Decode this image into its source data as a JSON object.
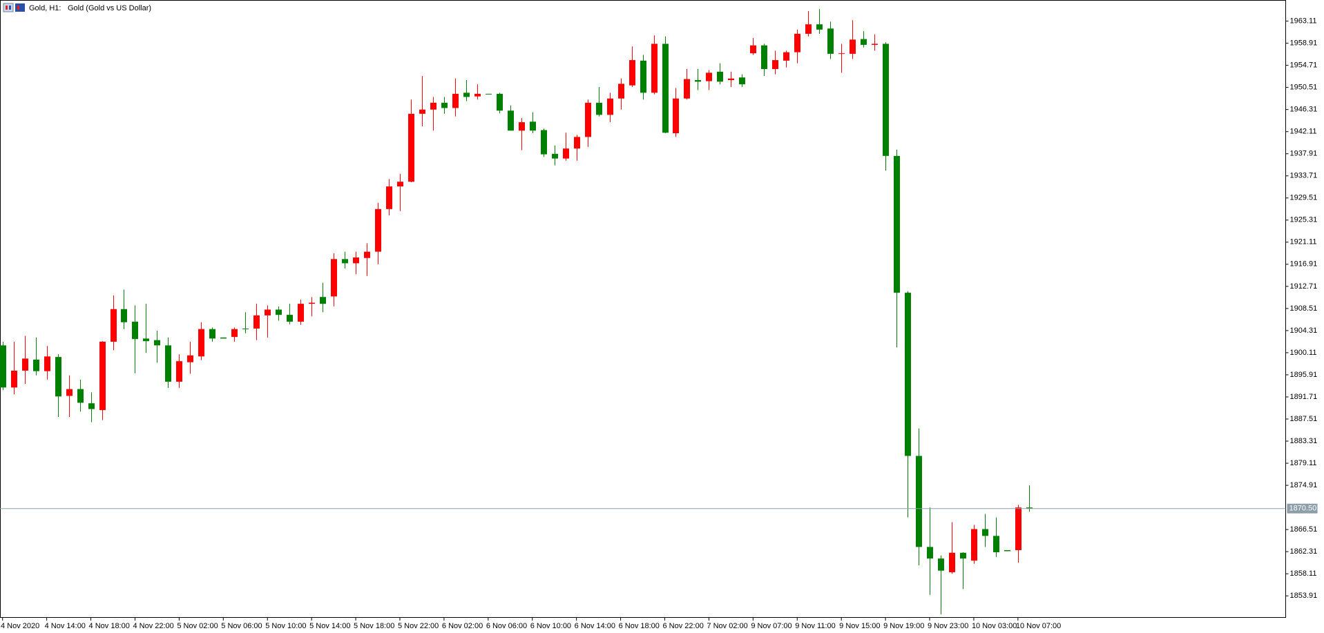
{
  "chart_data": {
    "type": "candlestick",
    "symbol": "Gold, H1:",
    "description": "Gold (Gold vs US Dollar)",
    "up_color": "#ff0000",
    "down_color": "#008000",
    "categories": [
      "4 Nov 2020",
      null,
      null,
      null,
      "4 Nov 14:00",
      null,
      null,
      null,
      "4 Nov 18:00",
      null,
      null,
      null,
      "4 Nov 22:00",
      null,
      null,
      null,
      "5 Nov 02:00",
      null,
      null,
      null,
      "5 Nov 06:00",
      null,
      null,
      null,
      "5 Nov 10:00",
      null,
      null,
      null,
      "5 Nov 14:00",
      null,
      null,
      null,
      "5 Nov 18:00",
      null,
      null,
      null,
      "5 Nov 22:00",
      null,
      null,
      null,
      "6 Nov 02:00",
      null,
      null,
      null,
      "6 Nov 06:00",
      null,
      null,
      null,
      "6 Nov 10:00",
      null,
      null,
      null,
      "6 Nov 14:00",
      null,
      null,
      null,
      "6 Nov 18:00",
      null,
      null,
      null,
      "6 Nov 22:00",
      null,
      null,
      null,
      "7 Nov 02:00",
      null,
      null,
      null,
      "9 Nov 07:00",
      null,
      null,
      null,
      "9 Nov 11:00",
      null,
      null,
      null,
      "9 Nov 15:00",
      null,
      null,
      null,
      "9 Nov 19:00",
      null,
      null,
      null,
      "9 Nov 23:00",
      null,
      null,
      null,
      "10 Nov 03:00",
      null,
      null,
      null,
      "10 Nov 07:00",
      null
    ],
    "open": [
      1901.5,
      1893.5,
      1896.7,
      1898.8,
      1896.6,
      1899.3,
      1891.9,
      1893.2,
      1890.5,
      1889.2,
      1902.2,
      1908.4,
      1906.0,
      1902.8,
      1902.5,
      1901.5,
      1894.6,
      1898.3,
      1899.4,
      1904.6,
      1903.0,
      1903.1,
      1904.7,
      1904.7,
      1907.2,
      1908.3,
      1907.3,
      1906.0,
      1909.4,
      1910.7,
      1910.8,
      1917.9,
      1917.1,
      1918.1,
      1919.3,
      1927.4,
      1931.7,
      1932.6,
      1945.5,
      1946.3,
      1947.6,
      1946.6,
      1949.5,
      1948.8,
      1949.3,
      1949.3,
      1946.1,
      1942.3,
      1944.0,
      1942.4,
      1937.9,
      1937.0,
      1938.9,
      1941.1,
      1947.6,
      1945.3,
      1948.4,
      1950.9,
      1955.6,
      1949.5,
      1958.8,
      1941.8,
      1948.4,
      1951.9,
      1951.7,
      1953.5,
      1951.9,
      1952.4,
      1957.0,
      1958.5,
      1954.0,
      1955.6,
      1957.2,
      1960.7,
      1962.5,
      1961.7,
      1956.9,
      1956.9,
      1959.7,
      1958.6,
      1958.8,
      1937.5,
      1911.5,
      1880.5,
      1863.2,
      1861.0,
      1858.4,
      1862.1,
      1860.6,
      1866.6,
      1865.3,
      1862.6,
      1862.6,
      1870.7
    ],
    "high": [
      1902.2,
      1902.2,
      1903.3,
      1903.0,
      1901.4,
      1899.8,
      1895.8,
      1895.0,
      1892.6,
      1902.3,
      1911.0,
      1912.1,
      1909.1,
      1909.4,
      1904.3,
      1903.0,
      1899.8,
      1902.2,
      1905.9,
      1904.9,
      1903.0,
      1904.9,
      1907.8,
      1909.4,
      1909.1,
      1908.9,
      1909.4,
      1910.2,
      1910.7,
      1913.4,
      1919.0,
      1919.3,
      1919.3,
      1920.9,
      1928.6,
      1933.1,
      1934.1,
      1948.2,
      1952.7,
      1948.7,
      1948.7,
      1952.2,
      1951.9,
      1951.1,
      1949.3,
      1949.5,
      1947.1,
      1944.7,
      1945.8,
      1942.7,
      1939.5,
      1941.9,
      1941.5,
      1948.2,
      1950.6,
      1949.5,
      1952.2,
      1958.3,
      1956.7,
      1960.4,
      1960.2,
      1950.4,
      1954.0,
      1954.0,
      1953.8,
      1955.1,
      1953.5,
      1953.0,
      1959.9,
      1958.8,
      1957.5,
      1957.5,
      1961.5,
      1965.0,
      1965.4,
      1963.0,
      1958.8,
      1963.3,
      1961.2,
      1960.6,
      1959.1,
      1938.7,
      1911.8,
      1885.7,
      1870.7,
      1861.6,
      1867.9,
      1862.2,
      1867.4,
      1869.5,
      1868.8,
      1862.6,
      1871.2,
      1874.9
    ],
    "low": [
      1893.0,
      1892.2,
      1894.2,
      1895.8,
      1895.0,
      1887.9,
      1887.9,
      1888.9,
      1886.9,
      1887.3,
      1900.6,
      1904.6,
      1896.2,
      1900.1,
      1898.2,
      1893.4,
      1893.4,
      1896.1,
      1898.7,
      1902.2,
      1902.8,
      1902.2,
      1903.8,
      1902.5,
      1903.0,
      1906.2,
      1905.5,
      1905.4,
      1907.0,
      1907.8,
      1908.9,
      1916.1,
      1915.0,
      1914.7,
      1916.9,
      1926.2,
      1927.0,
      1932.5,
      1943.1,
      1942.3,
      1945.5,
      1945.0,
      1947.9,
      1948.2,
      1949.2,
      1945.6,
      1942.3,
      1938.6,
      1941.8,
      1937.3,
      1935.7,
      1936.6,
      1936.6,
      1939.2,
      1945.0,
      1943.9,
      1946.3,
      1950.6,
      1948.2,
      1949.2,
      1941.8,
      1941.1,
      1948.2,
      1950.0,
      1950.0,
      1951.1,
      1950.6,
      1950.6,
      1956.7,
      1952.7,
      1953.0,
      1954.3,
      1955.1,
      1960.2,
      1960.7,
      1955.9,
      1953.3,
      1955.9,
      1958.1,
      1957.5,
      1934.7,
      1901.1,
      1868.8,
      1859.7,
      1854.1,
      1850.4,
      1858.1,
      1855.2,
      1860.0,
      1863.2,
      1861.3,
      1862.4,
      1860.2,
      1869.9
    ],
    "close": [
      1893.5,
      1896.7,
      1899.0,
      1896.6,
      1899.4,
      1891.8,
      1893.2,
      1890.6,
      1889.4,
      1902.2,
      1908.4,
      1905.9,
      1902.7,
      1902.3,
      1901.5,
      1894.6,
      1898.5,
      1899.6,
      1904.6,
      1902.8,
      1902.8,
      1904.6,
      1904.6,
      1907.2,
      1908.3,
      1907.3,
      1906.0,
      1909.4,
      1909.6,
      1909.4,
      1917.9,
      1917.1,
      1918.2,
      1919.3,
      1927.4,
      1931.7,
      1932.6,
      1945.5,
      1946.3,
      1947.6,
      1946.6,
      1949.3,
      1948.7,
      1949.3,
      1949.2,
      1946.1,
      1942.3,
      1943.9,
      1942.3,
      1937.8,
      1937.0,
      1938.9,
      1941.1,
      1947.6,
      1945.3,
      1948.4,
      1951.2,
      1955.7,
      1949.5,
      1958.8,
      1941.9,
      1948.4,
      1952.1,
      1951.6,
      1953.3,
      1951.6,
      1952.2,
      1951.1,
      1958.5,
      1954.0,
      1955.7,
      1957.2,
      1960.7,
      1962.5,
      1961.5,
      1956.9,
      1957.0,
      1959.6,
      1958.6,
      1958.8,
      1937.5,
      1911.5,
      1880.5,
      1863.2,
      1861.0,
      1858.7,
      1862.1,
      1861.0,
      1866.6,
      1865.3,
      1862.2,
      1862.4,
      1870.7,
      1870.5
    ],
    "current_price": {
      "value": 1870.5,
      "label": "1870.50"
    },
    "ylim": [
      1849.74,
      1967.12
    ],
    "yticks": [
      1853.91,
      1858.11,
      1862.31,
      1866.51,
      1874.91,
      1879.11,
      1883.31,
      1887.51,
      1891.71,
      1895.91,
      1900.11,
      1904.31,
      1908.51,
      1912.71,
      1916.91,
      1921.11,
      1925.31,
      1929.51,
      1933.71,
      1937.91,
      1942.11,
      1946.31,
      1950.51,
      1954.71,
      1958.91,
      1963.11
    ]
  }
}
